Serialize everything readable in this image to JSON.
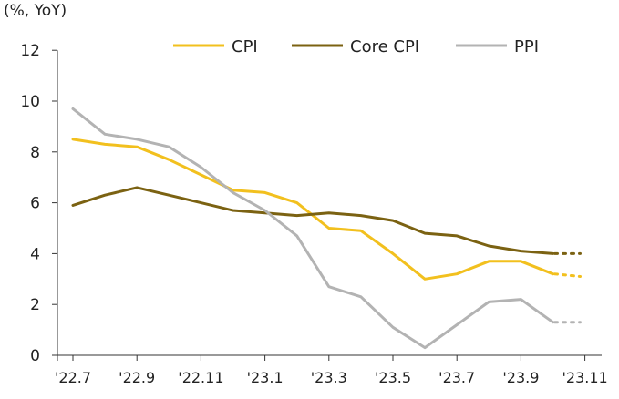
{
  "chart_data": {
    "type": "line",
    "unit_label": "(%, YoY)",
    "x": [
      "'22.7",
      "'22.8",
      "'22.9",
      "'22.10",
      "'22.11",
      "'22.12",
      "'23.1",
      "'23.2",
      "'23.3",
      "'23.4",
      "'23.5",
      "'23.6",
      "'23.7",
      "'23.8",
      "'23.9",
      "'23.10",
      "'23.11"
    ],
    "x_tick_labels": [
      "'22.7",
      "'22.9",
      "'22.11",
      "'23.1",
      "'23.3",
      "'23.5",
      "'23.7",
      "'23.9",
      "'23.11"
    ],
    "ylim": [
      0,
      12
    ],
    "y_ticks": [
      0,
      2,
      4,
      6,
      8,
      10,
      12
    ],
    "grid": false,
    "legend_position": "top",
    "series": [
      {
        "name": "CPI",
        "color": "#F2C01E",
        "values": [
          8.5,
          8.3,
          8.2,
          7.7,
          7.1,
          6.5,
          6.4,
          6.0,
          5.0,
          4.9,
          4.0,
          3.0,
          3.2,
          3.7,
          3.7,
          3.2,
          null
        ],
        "projection": [
          3.2,
          3.1
        ]
      },
      {
        "name": "Core CPI",
        "color": "#7B6212",
        "values": [
          5.9,
          6.3,
          6.6,
          6.3,
          6.0,
          5.7,
          5.6,
          5.5,
          5.6,
          5.5,
          5.3,
          4.8,
          4.7,
          4.3,
          4.1,
          4.0,
          null
        ],
        "projection": [
          4.0,
          4.0
        ]
      },
      {
        "name": "PPI",
        "color": "#B3B3B3",
        "values": [
          9.7,
          8.7,
          8.5,
          8.2,
          7.4,
          6.4,
          5.7,
          4.7,
          2.7,
          2.3,
          1.1,
          0.3,
          1.2,
          2.1,
          2.2,
          1.3,
          null
        ],
        "projection": [
          1.3,
          1.3
        ]
      }
    ]
  }
}
